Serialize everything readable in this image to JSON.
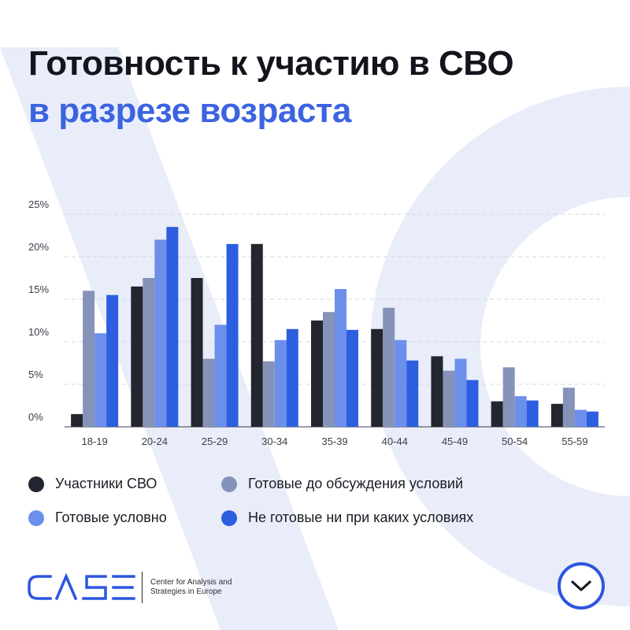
{
  "header": {
    "title": "Готовность к участию в СВО",
    "subtitle": "в разрезе возраста"
  },
  "colors": {
    "title": "#14151c",
    "subtitle": "#3c63e0",
    "background_shape": "#e9edfa",
    "accent": "#2d55e0"
  },
  "chart_data": {
    "type": "bar",
    "categories": [
      "18-19",
      "20-24",
      "25-29",
      "30-34",
      "35-39",
      "40-44",
      "45-49",
      "50-54",
      "55-59"
    ],
    "series": [
      {
        "name": "Участники СВО",
        "color": "#23252f",
        "values": [
          1.5,
          16.5,
          17.5,
          21.5,
          12.5,
          11.5,
          8.3,
          3,
          2.7
        ]
      },
      {
        "name": "Готовые до обсуждения условий",
        "color": "#8593b8",
        "values": [
          16,
          17.5,
          8,
          7.7,
          13.5,
          14,
          6.6,
          7,
          4.6
        ]
      },
      {
        "name": "Готовые условно",
        "color": "#6b8fea",
        "values": [
          11,
          22,
          12,
          10.2,
          16.2,
          10.2,
          8,
          3.6,
          2
        ]
      },
      {
        "name": "Не готовые ни при каких условиях",
        "color": "#2d5ee0",
        "values": [
          15.5,
          23.5,
          21.5,
          11.5,
          11.4,
          7.8,
          5.5,
          3.1,
          1.8
        ]
      }
    ],
    "yticks": [
      "0%",
      "5%",
      "10%",
      "15%",
      "20%",
      "25%"
    ],
    "ylim": [
      0,
      25
    ],
    "grid": true,
    "legend_position": "bottom"
  },
  "legend": {
    "items": [
      {
        "label": "Участники СВО",
        "color": "#23252f"
      },
      {
        "label": "Готовые до обсуждения условий",
        "color": "#8593b8"
      },
      {
        "label": "Готовые условно",
        "color": "#6b8fea"
      },
      {
        "label": "Не готовые ни при каких условиях",
        "color": "#2d5ee0"
      }
    ]
  },
  "footer": {
    "logo_text": "CASE",
    "tagline": "Center for Analysis and Strategies in Europe",
    "next_icon": "chevron-down-icon"
  }
}
